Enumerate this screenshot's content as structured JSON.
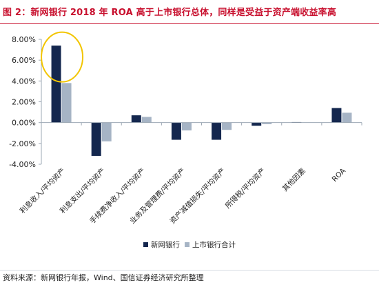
{
  "title": "图 2：新网银行 2018 年 ROA 高于上市银行总体，同样是受益于资产端收益率高",
  "source": "资料来源：新网银行年报，Wind、国信证券经济研究所整理",
  "colors": {
    "series1": "#14274e",
    "series2": "#a6b4c5",
    "highlight": "#f2c500",
    "axis": "#9da8b4",
    "title": "#c8102e"
  },
  "chart_data": {
    "type": "bar",
    "title": "",
    "xlabel": "",
    "ylabel": "",
    "ylim": [
      -0.04,
      0.08
    ],
    "y_ticks": [
      -0.04,
      -0.02,
      0.0,
      0.02,
      0.04,
      0.06,
      0.08
    ],
    "y_tick_labels": [
      "-4.00%",
      "-2.00%",
      "0.00%",
      "2.00%",
      "4.00%",
      "6.00%",
      "8.00%"
    ],
    "grid": false,
    "legend_position": "bottom",
    "categories": [
      "利息收入/平均资产",
      "利息支出/平均资产",
      "手续费净收入/平均资产",
      "业务及管理费/平均资产",
      "资产减值损失/平均资产",
      "所得税/平均资产",
      "其他因素",
      "ROA"
    ],
    "series": [
      {
        "name": "新网银行",
        "values": [
          0.074,
          -0.032,
          0.007,
          -0.0165,
          -0.0165,
          -0.003,
          0.0005,
          0.014
        ]
      },
      {
        "name": "上市银行合计",
        "values": [
          0.038,
          -0.018,
          0.0055,
          -0.0075,
          -0.007,
          -0.0015,
          0.0,
          0.0095
        ]
      }
    ],
    "annotations": [
      "highlight-ellipse-around-first-category"
    ]
  }
}
